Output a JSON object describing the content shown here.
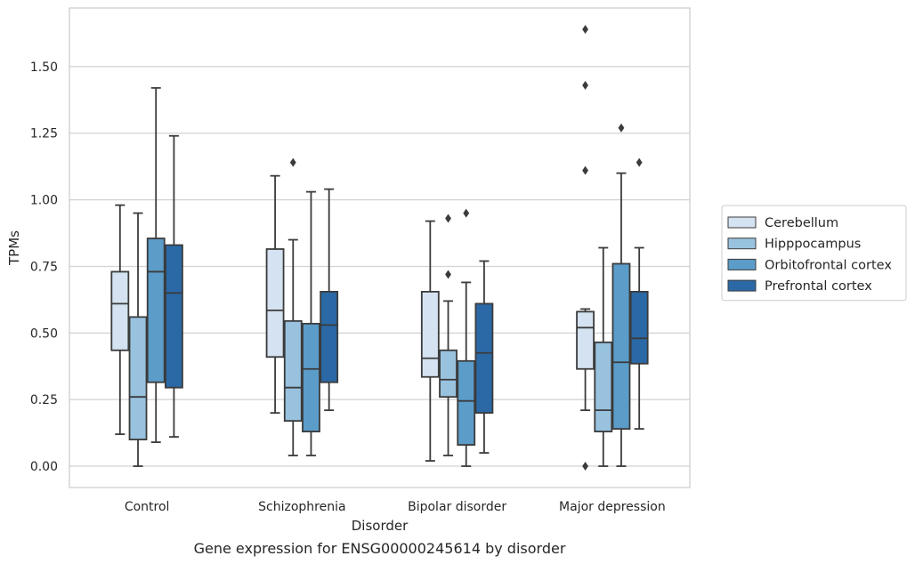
{
  "chart_data": {
    "type": "boxplot",
    "caption": "Gene expression for ENSG00000245614 by disorder",
    "xlabel": "Disorder",
    "ylabel": "TPMs",
    "ylim": [
      -0.08,
      1.72
    ],
    "yticks": [
      "0.00",
      "0.25",
      "0.50",
      "0.75",
      "1.00",
      "1.25",
      "1.50"
    ],
    "grid": true,
    "legend_position": "right",
    "categories": [
      "Control",
      "Schizophrenia",
      "Bipolar disorder",
      "Major depression"
    ],
    "series": [
      {
        "name": "Cerebellum",
        "color": "#d4e2f1",
        "boxes": [
          {
            "whislo": 0.12,
            "q1": 0.435,
            "med": 0.61,
            "q3": 0.73,
            "whishi": 0.98,
            "fliers": []
          },
          {
            "whislo": 0.2,
            "q1": 0.41,
            "med": 0.585,
            "q3": 0.815,
            "whishi": 1.09,
            "fliers": []
          },
          {
            "whislo": 0.02,
            "q1": 0.335,
            "med": 0.405,
            "q3": 0.655,
            "whishi": 0.92,
            "fliers": []
          },
          {
            "whislo": 0.21,
            "q1": 0.365,
            "med": 0.52,
            "q3": 0.58,
            "whishi": 0.59,
            "fliers": [
              0.0,
              1.11,
              1.43,
              1.64
            ]
          }
        ]
      },
      {
        "name": "Hipppocampus",
        "color": "#98c2de",
        "boxes": [
          {
            "whislo": 0.0,
            "q1": 0.1,
            "med": 0.26,
            "q3": 0.56,
            "whishi": 0.95,
            "fliers": []
          },
          {
            "whislo": 0.04,
            "q1": 0.17,
            "med": 0.295,
            "q3": 0.545,
            "whishi": 0.85,
            "fliers": [
              1.14
            ]
          },
          {
            "whislo": 0.04,
            "q1": 0.26,
            "med": 0.325,
            "q3": 0.435,
            "whishi": 0.62,
            "fliers": [
              0.72,
              0.93
            ]
          },
          {
            "whislo": 0.0,
            "q1": 0.13,
            "med": 0.21,
            "q3": 0.465,
            "whishi": 0.82,
            "fliers": []
          }
        ]
      },
      {
        "name": "Orbitofrontal cortex",
        "color": "#5b9cc9",
        "boxes": [
          {
            "whislo": 0.09,
            "q1": 0.315,
            "med": 0.73,
            "q3": 0.855,
            "whishi": 1.42,
            "fliers": []
          },
          {
            "whislo": 0.04,
            "q1": 0.13,
            "med": 0.365,
            "q3": 0.535,
            "whishi": 1.03,
            "fliers": []
          },
          {
            "whislo": 0.0,
            "q1": 0.08,
            "med": 0.245,
            "q3": 0.395,
            "whishi": 0.69,
            "fliers": [
              0.95
            ]
          },
          {
            "whislo": 0.0,
            "q1": 0.14,
            "med": 0.39,
            "q3": 0.76,
            "whishi": 1.1,
            "fliers": [
              1.27
            ]
          }
        ]
      },
      {
        "name": "Prefrontal cortex",
        "color": "#2a69a6",
        "boxes": [
          {
            "whislo": 0.11,
            "q1": 0.295,
            "med": 0.65,
            "q3": 0.83,
            "whishi": 1.24,
            "fliers": []
          },
          {
            "whislo": 0.21,
            "q1": 0.315,
            "med": 0.53,
            "q3": 0.655,
            "whishi": 1.04,
            "fliers": []
          },
          {
            "whislo": 0.05,
            "q1": 0.2,
            "med": 0.425,
            "q3": 0.61,
            "whishi": 0.77,
            "fliers": []
          },
          {
            "whislo": 0.14,
            "q1": 0.385,
            "med": 0.48,
            "q3": 0.655,
            "whishi": 0.82,
            "fliers": [
              1.14
            ]
          }
        ]
      }
    ]
  }
}
